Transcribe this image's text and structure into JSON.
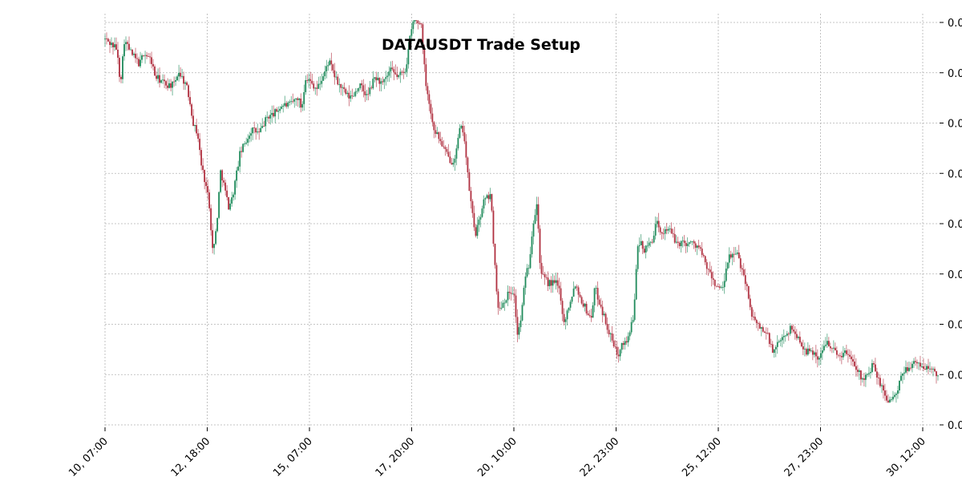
{
  "chart_data": {
    "type": "candlestick",
    "title": "DATAUSDT Trade Setup",
    "xlabel": "",
    "ylabel": "",
    "x_tick_labels": [
      "10, 07:00",
      "12, 18:00",
      "15, 07:00",
      "17, 20:00",
      "20, 10:00",
      "22, 23:00",
      "25, 12:00",
      "27, 23:00",
      "30, 12:00"
    ],
    "y_tick_labels": [
      "0.0",
      "0.0",
      "0.0",
      "0.0",
      "0.0",
      "0.0",
      "0.0",
      "0.0",
      "0.0"
    ],
    "grid": true,
    "y_axis_side": "right",
    "colors": {
      "up": "#1e8a5a",
      "down": "#b03040",
      "grid": "#b4b4b4"
    },
    "close_trend": [
      [
        0,
        0.953
      ],
      [
        3,
        0.93
      ],
      [
        4,
        0.845
      ],
      [
        5,
        0.95
      ],
      [
        7,
        0.915
      ],
      [
        9,
        0.89
      ],
      [
        10,
        0.92
      ],
      [
        12,
        0.9
      ],
      [
        13,
        0.86
      ],
      [
        16,
        0.84
      ],
      [
        18,
        0.84
      ],
      [
        19,
        0.875
      ],
      [
        21,
        0.84
      ],
      [
        22,
        0.8
      ],
      [
        23,
        0.74
      ],
      [
        24,
        0.72
      ],
      [
        25,
        0.64
      ],
      [
        26,
        0.6
      ],
      [
        27,
        0.55
      ],
      [
        28,
        0.42
      ],
      [
        29,
        0.5
      ],
      [
        30,
        0.63
      ],
      [
        32,
        0.54
      ],
      [
        33,
        0.56
      ],
      [
        35,
        0.67
      ],
      [
        38,
        0.73
      ],
      [
        40,
        0.72
      ],
      [
        42,
        0.76
      ],
      [
        44,
        0.77
      ],
      [
        46,
        0.79
      ],
      [
        48,
        0.79
      ],
      [
        50,
        0.81
      ],
      [
        51,
        0.78
      ],
      [
        52,
        0.86
      ],
      [
        55,
        0.83
      ],
      [
        57,
        0.87
      ],
      [
        58,
        0.9
      ],
      [
        60,
        0.85
      ],
      [
        63,
        0.81
      ],
      [
        64,
        0.81
      ],
      [
        66,
        0.84
      ],
      [
        68,
        0.81
      ],
      [
        70,
        0.86
      ],
      [
        72,
        0.84
      ],
      [
        74,
        0.875
      ],
      [
        76,
        0.86
      ],
      [
        78,
        0.88
      ],
      [
        79,
        0.95
      ],
      [
        80,
        1.0
      ],
      [
        82,
        0.99
      ],
      [
        83,
        0.86
      ],
      [
        85,
        0.74
      ],
      [
        87,
        0.7
      ],
      [
        89,
        0.66
      ],
      [
        90,
        0.65
      ],
      [
        91,
        0.67
      ],
      [
        92,
        0.73
      ],
      [
        93,
        0.73
      ],
      [
        94,
        0.62
      ],
      [
        95,
        0.54
      ],
      [
        96,
        0.47
      ],
      [
        97,
        0.5
      ],
      [
        98,
        0.55
      ],
      [
        100,
        0.57
      ],
      [
        101,
        0.41
      ],
      [
        102,
        0.28
      ],
      [
        103,
        0.3
      ],
      [
        105,
        0.33
      ],
      [
        106,
        0.33
      ],
      [
        107,
        0.22
      ],
      [
        108,
        0.27
      ],
      [
        109,
        0.37
      ],
      [
        110,
        0.4
      ],
      [
        111,
        0.5
      ],
      [
        112,
        0.55
      ],
      [
        113,
        0.37
      ],
      [
        115,
        0.35
      ],
      [
        117,
        0.35
      ],
      [
        118,
        0.33
      ],
      [
        119,
        0.25
      ],
      [
        121,
        0.32
      ],
      [
        122,
        0.35
      ],
      [
        123,
        0.32
      ],
      [
        125,
        0.28
      ],
      [
        126,
        0.26
      ],
      [
        127,
        0.34
      ],
      [
        128,
        0.31
      ],
      [
        129,
        0.28
      ],
      [
        131,
        0.22
      ],
      [
        133,
        0.17
      ],
      [
        134,
        0.21
      ],
      [
        135,
        0.2
      ],
      [
        137,
        0.26
      ],
      [
        138,
        0.43
      ],
      [
        139,
        0.45
      ],
      [
        140,
        0.43
      ],
      [
        142,
        0.46
      ],
      [
        143,
        0.5
      ],
      [
        144,
        0.47
      ],
      [
        146,
        0.49
      ],
      [
        148,
        0.45
      ],
      [
        149,
        0.45
      ],
      [
        150,
        0.45
      ],
      [
        152,
        0.45
      ],
      [
        154,
        0.44
      ],
      [
        156,
        0.39
      ],
      [
        158,
        0.35
      ],
      [
        160,
        0.33
      ],
      [
        162,
        0.42
      ],
      [
        164,
        0.42
      ],
      [
        166,
        0.36
      ],
      [
        168,
        0.26
      ],
      [
        170,
        0.24
      ],
      [
        172,
        0.22
      ],
      [
        173,
        0.18
      ],
      [
        174,
        0.19
      ],
      [
        176,
        0.22
      ],
      [
        178,
        0.24
      ],
      [
        180,
        0.21
      ],
      [
        182,
        0.18
      ],
      [
        184,
        0.18
      ],
      [
        185,
        0.16
      ],
      [
        186,
        0.18
      ],
      [
        187,
        0.21
      ],
      [
        188,
        0.2
      ],
      [
        190,
        0.17
      ],
      [
        192,
        0.18
      ],
      [
        194,
        0.16
      ],
      [
        196,
        0.12
      ],
      [
        198,
        0.12
      ],
      [
        199,
        0.15
      ],
      [
        201,
        0.1
      ],
      [
        203,
        0.06
      ],
      [
        205,
        0.07
      ],
      [
        207,
        0.13
      ],
      [
        209,
        0.15
      ],
      [
        211,
        0.15
      ],
      [
        213,
        0.14
      ],
      [
        214,
        0.14
      ],
      [
        216,
        0.12
      ]
    ]
  }
}
